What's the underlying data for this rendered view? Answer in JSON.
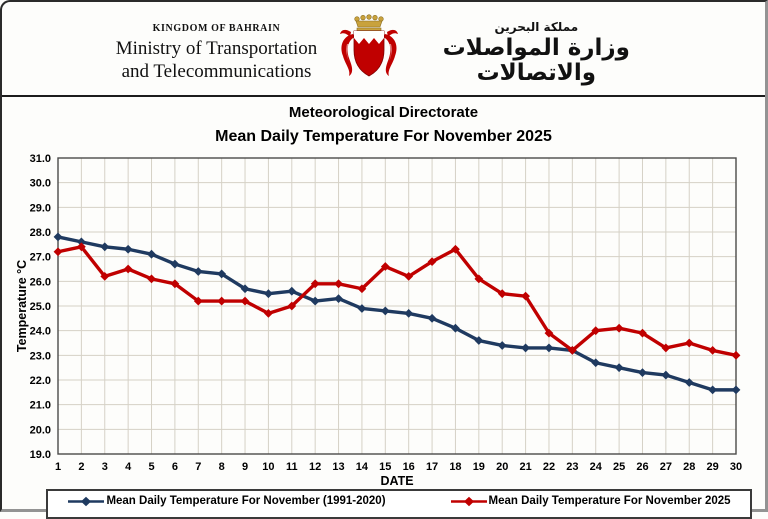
{
  "header": {
    "kingdom": "KINGDOM OF BAHRAIN",
    "ministry_line1": "Ministry of Transportation",
    "ministry_line2": "and Telecommunications",
    "arabic_small": "مملكة البحرين",
    "arabic_large": "وزارة المواصلات والاتصالات"
  },
  "title": {
    "line1": "Meteorological Directorate",
    "line2": "Mean Daily Temperature For November 2025"
  },
  "chart_data": {
    "type": "line",
    "xlabel": "DATE",
    "ylabel": "Temperature °C",
    "ylim": [
      19.0,
      31.0
    ],
    "ytick_step": 1.0,
    "grid": true,
    "grid_color": "#d5d1c6",
    "frame_color": "#4a4a4a",
    "legend_position": "bottom",
    "xticks": [
      "1",
      "2",
      "3",
      "4",
      "5",
      "6",
      "7",
      "8",
      "9",
      "10",
      "11",
      "12",
      "13",
      "14",
      "15",
      "16",
      "17",
      "18",
      "19",
      "20",
      "21",
      "22",
      "23",
      "24",
      "25",
      "26",
      "27",
      "28",
      "29",
      "30"
    ],
    "yticks": [
      "31.0",
      "30.0",
      "29.0",
      "28.0",
      "27.0",
      "26.0",
      "25.0",
      "24.0",
      "23.0",
      "22.0",
      "21.0",
      "20.0",
      "19.0"
    ],
    "series": [
      {
        "name": "Mean Daily Temperature For November (1991-2020)",
        "color": "#1f3a60",
        "values": [
          27.8,
          27.6,
          27.4,
          27.3,
          27.1,
          26.7,
          26.4,
          26.3,
          25.7,
          25.5,
          25.6,
          25.2,
          25.3,
          24.9,
          24.8,
          24.7,
          24.5,
          24.1,
          23.6,
          23.4,
          23.3,
          23.3,
          23.2,
          22.7,
          22.5,
          22.3,
          22.2,
          21.9,
          21.6,
          21.6
        ]
      },
      {
        "name": "Mean Daily Temperature For November 2025",
        "color": "#c00000",
        "values": [
          27.2,
          27.4,
          26.2,
          26.5,
          26.1,
          25.9,
          25.2,
          25.2,
          25.2,
          24.7,
          25.0,
          25.9,
          25.9,
          25.7,
          26.6,
          26.2,
          26.8,
          27.3,
          26.1,
          25.5,
          25.4,
          23.9,
          23.2,
          24.0,
          24.1,
          23.9,
          23.3,
          23.5,
          23.2,
          23.0
        ]
      }
    ]
  }
}
